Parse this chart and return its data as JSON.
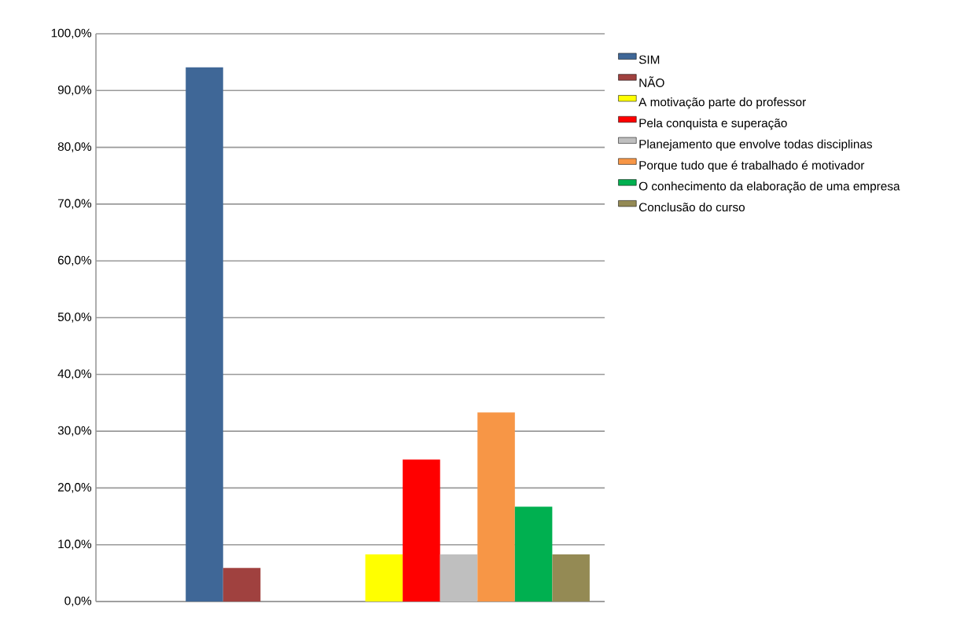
{
  "chart_data": {
    "type": "bar",
    "categories": [
      null,
      null
    ],
    "series": [
      {
        "name": "SIM",
        "color": "#3f6797",
        "values": [
          94.1,
          null
        ]
      },
      {
        "name": "NÃO",
        "color": "#a0413f",
        "values": [
          5.9,
          null
        ]
      },
      {
        "name": "A motivação parte do professor",
        "color": "#ffff00",
        "values": [
          null,
          8.3
        ]
      },
      {
        "name": "Pela conquista e superação",
        "color": "#ff0000",
        "values": [
          null,
          25.0
        ]
      },
      {
        "name": "Planejamento que envolve todas disciplinas",
        "color": "#bfbfbf",
        "values": [
          null,
          8.3
        ]
      },
      {
        "name": "Porque tudo que é trabalhado é motivador",
        "color": "#f79646",
        "values": [
          null,
          33.3
        ]
      },
      {
        "name": "O conhecimento da elaboração de uma empresa",
        "color": "#00b050",
        "values": [
          null,
          16.7
        ]
      },
      {
        "name": "Conclusão do curso",
        "color": "#948a54",
        "values": [
          null,
          8.3
        ]
      }
    ],
    "ylim": [
      0,
      100
    ],
    "yticks": [
      {
        "value": 0,
        "label": "0,0%"
      },
      {
        "value": 10,
        "label": "10,0%"
      },
      {
        "value": 20,
        "label": "20,0%"
      },
      {
        "value": 30,
        "label": "30,0%"
      },
      {
        "value": 40,
        "label": "40,0%"
      },
      {
        "value": 50,
        "label": "50,0%"
      },
      {
        "value": 60,
        "label": "60,0%"
      },
      {
        "value": 70,
        "label": "70,0%"
      },
      {
        "value": 80,
        "label": "80,0%"
      },
      {
        "value": 90,
        "label": "90,0%"
      },
      {
        "value": 100,
        "label": "100,0%"
      }
    ],
    "grid": "y",
    "legend": "right"
  }
}
